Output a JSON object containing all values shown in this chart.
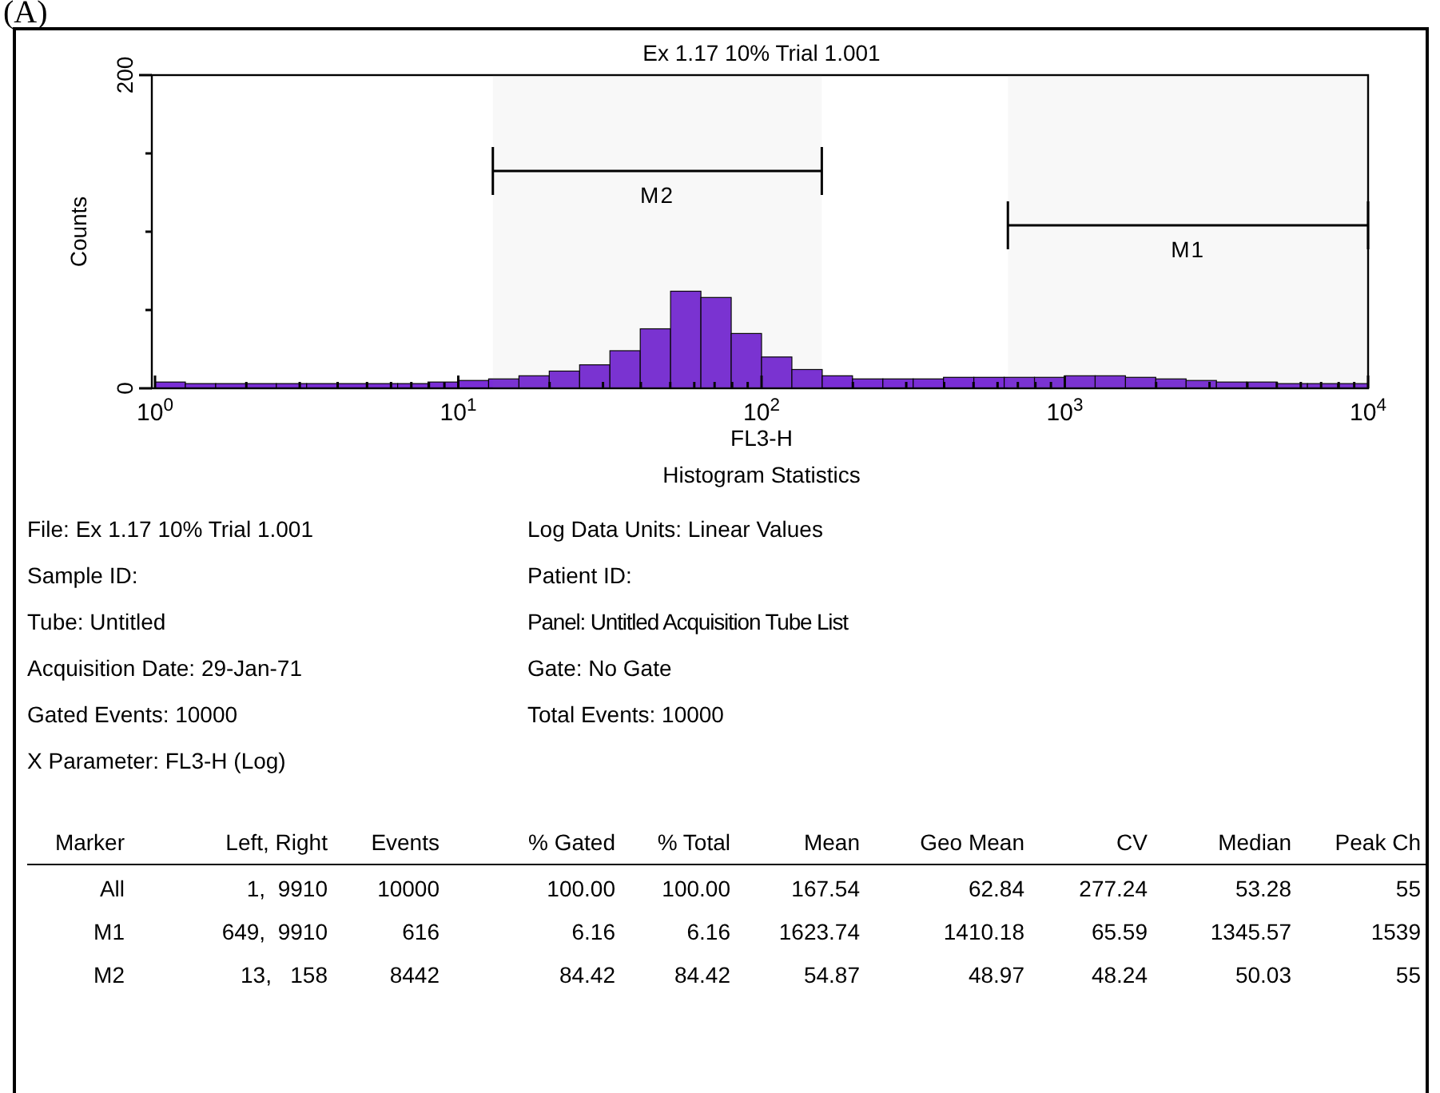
{
  "chart_data": {
    "type": "histogram",
    "title": "Ex 1.17 10% Trial 1.001",
    "xlabel": "FL3-H",
    "ylabel": "Counts",
    "log": "x",
    "color": "#7a2ed6",
    "grid": false,
    "bins": [
      1,
      1.259,
      1.585,
      1.995,
      2.512,
      3.162,
      3.981,
      5.012,
      6.31,
      7.943,
      10,
      12.59,
      15.85,
      19.95,
      25.12,
      31.62,
      39.81,
      50.12,
      63.1,
      79.43,
      100,
      125.9,
      158.5,
      199.5,
      251.2,
      316.2,
      398.1,
      501.2,
      631,
      794.3,
      1000,
      1259,
      1585,
      1995,
      2512,
      3162,
      3981,
      5012,
      6310,
      7943,
      10000
    ],
    "values": [
      4,
      3,
      3,
      3,
      3,
      3,
      3,
      3,
      3,
      4,
      5,
      6,
      8,
      11,
      15,
      24,
      38,
      62,
      58,
      35,
      20,
      12,
      8,
      6,
      6,
      6,
      7,
      7,
      7,
      7,
      8,
      8,
      7,
      6,
      5,
      4,
      4,
      3,
      3,
      3
    ],
    "xlim": [
      1,
      10000
    ],
    "ylim": [
      0,
      200
    ],
    "xticks": [
      {
        "value": 1,
        "label": "10$^{0}$"
      },
      {
        "value": 2,
        "label": null
      },
      {
        "value": 3,
        "label": null
      },
      {
        "value": 4,
        "label": null
      },
      {
        "value": 5,
        "label": null
      },
      {
        "value": 6,
        "label": null
      },
      {
        "value": 7,
        "label": null
      },
      {
        "value": 8,
        "label": null
      },
      {
        "value": 9,
        "label": null
      },
      {
        "value": 10,
        "label": "10$^{1}$"
      },
      {
        "value": 20,
        "label": null
      },
      {
        "value": 30,
        "label": null
      },
      {
        "value": 40,
        "label": null
      },
      {
        "value": 50,
        "label": null
      },
      {
        "value": 60,
        "label": null
      },
      {
        "value": 70,
        "label": null
      },
      {
        "value": 80,
        "label": null
      },
      {
        "value": 90,
        "label": null
      },
      {
        "value": 100,
        "label": "10$^{2}$"
      },
      {
        "value": 200,
        "label": null
      },
      {
        "value": 300,
        "label": null
      },
      {
        "value": 400,
        "label": null
      },
      {
        "value": 500,
        "label": null
      },
      {
        "value": 600,
        "label": null
      },
      {
        "value": 700,
        "label": null
      },
      {
        "value": 800,
        "label": null
      },
      {
        "value": 900,
        "label": null
      },
      {
        "value": 1000,
        "label": "10$^{3}$"
      },
      {
        "value": 2000,
        "label": null
      },
      {
        "value": 3000,
        "label": null
      },
      {
        "value": 4000,
        "label": null
      },
      {
        "value": 5000,
        "label": null
      },
      {
        "value": 6000,
        "label": null
      },
      {
        "value": 7000,
        "label": null
      },
      {
        "value": 8000,
        "label": null
      },
      {
        "value": 9000,
        "label": null
      },
      {
        "value": 10000,
        "label": "10$^{4}$"
      }
    ],
    "yticks": [
      0,
      {
        "value": 50,
        "label": null
      },
      {
        "value": 100,
        "label": null
      },
      {
        "value": 150,
        "label": null
      },
      200
    ],
    "bands": [
      {
        "axis": "x",
        "from": 13,
        "to": 158,
        "label": "M2"
      },
      {
        "axis": "x",
        "from": 649,
        "to": 10000,
        "label": "M1"
      }
    ],
    "annotations": [
      "(A)",
      "Histogram Statistics",
      "File: Ex 1.17 10% Trial 1.001",
      "Log Data Units: Linear Values",
      "Sample ID:",
      "Patient ID:",
      "Tube: Untitled",
      "Panel: Untitled Acquisition Tube List",
      "Acquisition Date: 29-Jan-71",
      "Gate: No Gate",
      "Gated Events: 10000",
      "Total Events: 10000",
      "X Parameter: FL3-H (Log)",
      "Marker",
      "Left, Right",
      "Events",
      "% Gated",
      "% Total",
      "Mean",
      "Geo Mean",
      "CV",
      "Median",
      "Peak Ch",
      "All",
      "1,  9910",
      "10000",
      "100.00",
      "100.00",
      "167.54",
      "62.84",
      "277.24",
      "53.28",
      "55",
      "M1",
      "649,  9910",
      "616",
      "6.16",
      "6.16",
      "1623.74",
      "1410.18",
      "65.59",
      "1345.57",
      "1539",
      "M2",
      "13,   158",
      "8442",
      "84.42",
      "84.42",
      "54.87",
      "48.97",
      "48.24",
      "50.03",
      "55"
    ]
  }
}
